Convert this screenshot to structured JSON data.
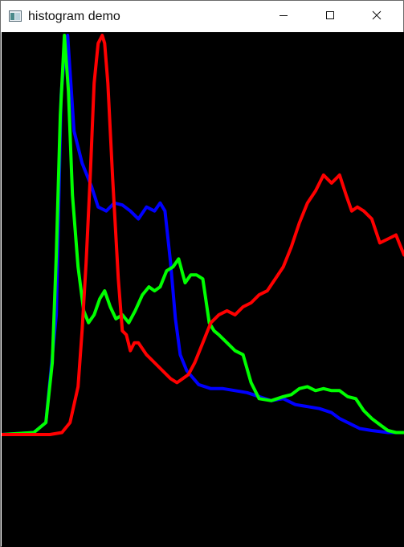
{
  "window": {
    "title": "histogram demo",
    "icons": {
      "app": "app-window-icon",
      "minimize": "minimize-icon",
      "maximize": "maximize-icon",
      "close": "close-icon"
    }
  },
  "colors": {
    "background": "#000000",
    "blue": "#0000ff",
    "green": "#00ff00",
    "red": "#ff0000"
  },
  "chart_data": {
    "type": "line",
    "title": "",
    "xlabel": "",
    "ylabel": "",
    "xlim": [
      0,
      500
    ],
    "ylim": [
      0,
      1000
    ],
    "grid": false,
    "legend": "none",
    "series": [
      {
        "color": "#0000ff",
        "x": [
          0,
          40,
          55,
          68,
          74,
          78,
          82,
          90,
          100,
          112,
          120,
          130,
          140,
          150,
          160,
          170,
          180,
          190,
          197,
          203,
          210,
          216,
          222,
          230,
          245,
          260,
          275,
          290,
          305,
          320,
          335,
          350,
          365,
          380,
          395,
          410,
          420,
          430,
          445,
          460,
          480,
          500
        ],
        "y": [
          0,
          5,
          30,
          300,
          850,
          950,
          1000,
          760,
          680,
          620,
          570,
          560,
          580,
          575,
          560,
          540,
          570,
          560,
          580,
          560,
          430,
          290,
          200,
          160,
          125,
          115,
          115,
          110,
          105,
          95,
          85,
          90,
          75,
          70,
          65,
          55,
          40,
          30,
          15,
          10,
          5,
          5
        ]
      },
      {
        "color": "#00ff00",
        "x": [
          0,
          40,
          55,
          63,
          68,
          73,
          78,
          83,
          88,
          95,
          102,
          108,
          115,
          122,
          128,
          135,
          142,
          150,
          158,
          166,
          175,
          183,
          190,
          197,
          205,
          213,
          220,
          228,
          235,
          242,
          250,
          258,
          264,
          270,
          280,
          290,
          300,
          310,
          320,
          335,
          350,
          360,
          370,
          380,
          390,
          400,
          410,
          420,
          430,
          440,
          450,
          460,
          470,
          480,
          490,
          500
        ],
        "y": [
          0,
          5,
          30,
          180,
          450,
          800,
          1000,
          860,
          600,
          420,
          310,
          280,
          300,
          340,
          360,
          320,
          290,
          300,
          280,
          310,
          350,
          370,
          360,
          370,
          410,
          420,
          440,
          380,
          400,
          400,
          390,
          280,
          260,
          250,
          230,
          210,
          200,
          130,
          90,
          85,
          95,
          100,
          115,
          120,
          110,
          115,
          110,
          110,
          95,
          90,
          60,
          40,
          25,
          10,
          5,
          5
        ]
      },
      {
        "color": "#ff0000",
        "x": [
          0,
          60,
          75,
          85,
          95,
          100,
          105,
          110,
          115,
          120,
          125,
          128,
          132,
          138,
          145,
          150,
          155,
          160,
          165,
          170,
          180,
          190,
          200,
          210,
          218,
          225,
          232,
          240,
          250,
          260,
          270,
          280,
          290,
          300,
          310,
          320,
          330,
          340,
          350,
          360,
          370,
          380,
          390,
          400,
          410,
          420,
          428,
          435,
          442,
          450,
          460,
          470,
          480,
          490,
          500
        ],
        "y": [
          0,
          0,
          5,
          30,
          120,
          260,
          430,
          640,
          880,
          980,
          1000,
          980,
          880,
          640,
          390,
          260,
          250,
          210,
          230,
          230,
          200,
          180,
          160,
          140,
          130,
          140,
          150,
          180,
          230,
          280,
          300,
          310,
          300,
          320,
          330,
          350,
          360,
          390,
          420,
          470,
          530,
          580,
          610,
          650,
          630,
          650,
          600,
          560,
          570,
          560,
          540,
          480,
          490,
          500,
          450
        ]
      }
    ]
  }
}
